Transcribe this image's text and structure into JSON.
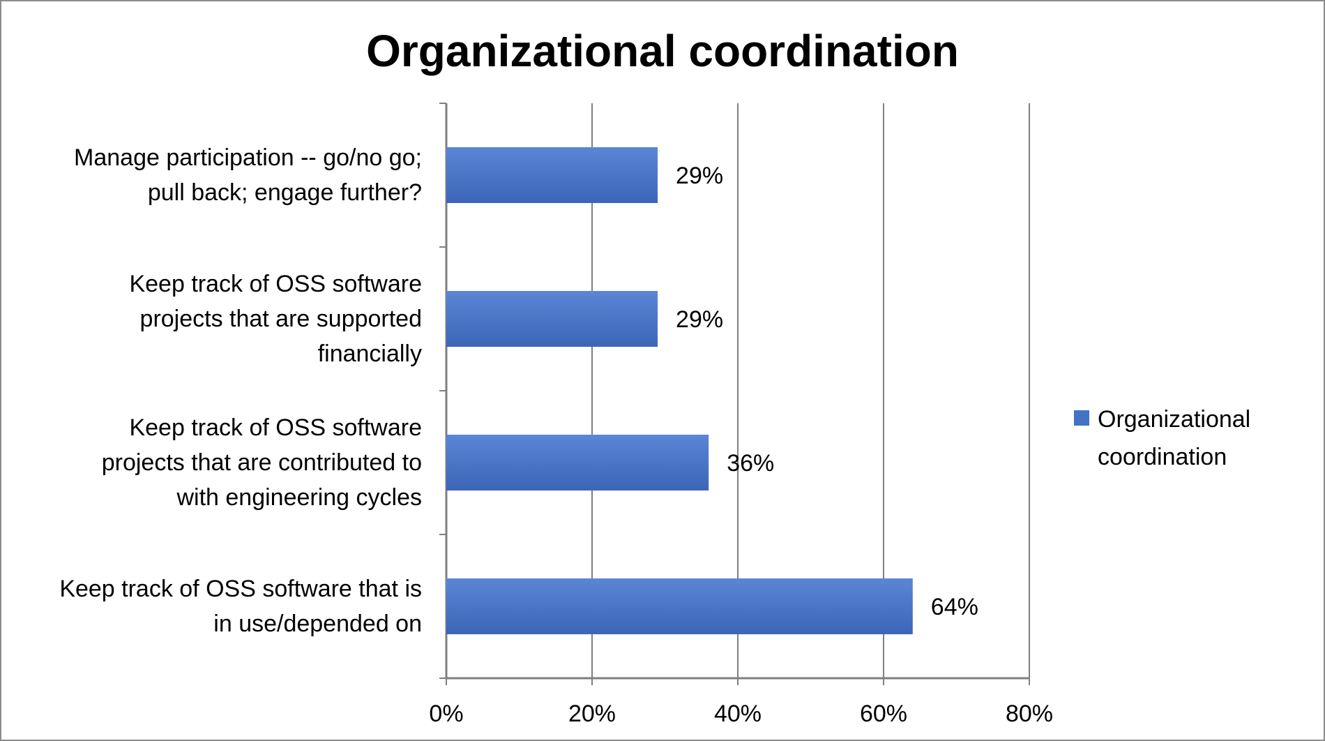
{
  "chart_data": {
    "type": "bar",
    "orientation": "horizontal",
    "title": "Organizational coordination",
    "categories": [
      [
        "Manage participation -- go/no go;",
        "pull back; engage further?"
      ],
      [
        "Keep track of OSS software",
        "projects that are supported",
        "financially"
      ],
      [
        "Keep track of OSS software",
        "projects that are contributed to",
        "with engineering cycles"
      ],
      [
        "Keep track of OSS software that is",
        "in use/depended on"
      ]
    ],
    "series": [
      {
        "name": "Organizational coordination",
        "values": [
          29,
          29,
          36,
          64
        ],
        "data_labels": [
          "29%",
          "29%",
          "36%",
          "64%"
        ],
        "color": "#4472C4"
      }
    ],
    "xlim": [
      0,
      80
    ],
    "xticks": [
      0,
      20,
      40,
      60,
      80
    ],
    "xtick_labels": [
      "0%",
      "20%",
      "40%",
      "60%",
      "80%"
    ],
    "xlabel": "",
    "ylabel": "",
    "grid": "vertical major gridlines",
    "legend_position": "right"
  }
}
